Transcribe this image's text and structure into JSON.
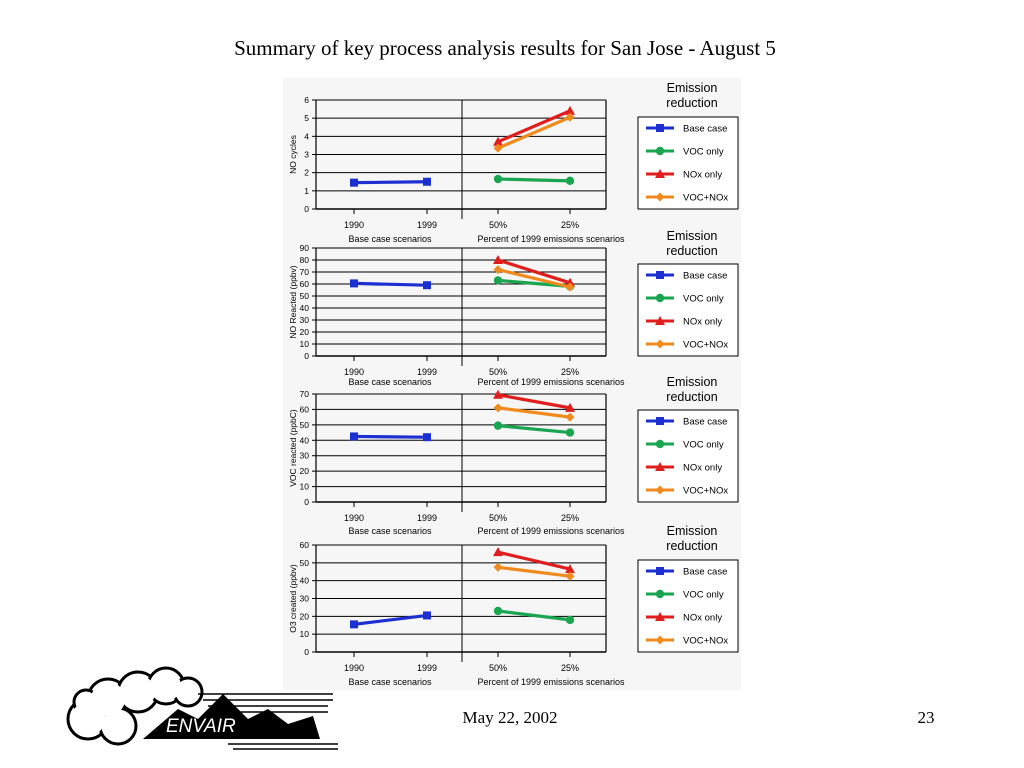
{
  "title": "Summary of key process analysis results for San Jose - August 5",
  "footer": {
    "date": "May 22, 2002",
    "page": "23"
  },
  "logo": {
    "text": "ENVAIR"
  },
  "colors": {
    "base": "#1c2fd1",
    "voc": "#1aa550",
    "nox": "#e01e1e",
    "vocnox": "#f18a1c"
  },
  "chart_data": [
    {
      "type": "line",
      "ylabel": "NO cycles",
      "ylim": [
        0,
        6
      ],
      "yticks": [
        0,
        1,
        2,
        3,
        4,
        5,
        6
      ],
      "categories": [
        "1990",
        "1999",
        "50%",
        "25%"
      ],
      "group_labels": [
        "Base case scenarios",
        "Percent of 1999 emissions scenarios"
      ],
      "legend_title": [
        "Emission",
        "reduction"
      ],
      "series": [
        {
          "name": "Base case",
          "key": "base",
          "values": [
            1.45,
            1.5,
            null,
            null
          ]
        },
        {
          "name": "VOC only",
          "key": "voc",
          "values": [
            null,
            null,
            1.65,
            1.55
          ]
        },
        {
          "name": "NOx only",
          "key": "nox",
          "values": [
            null,
            null,
            3.7,
            5.4
          ]
        },
        {
          "name": "VOC+NOx",
          "key": "vocnox",
          "values": [
            null,
            null,
            3.35,
            5.05
          ]
        }
      ]
    },
    {
      "type": "line",
      "ylabel": "NO Reacted (ppbv)",
      "ylim": [
        0,
        90
      ],
      "yticks": [
        0,
        10,
        20,
        30,
        40,
        50,
        60,
        70,
        80,
        90
      ],
      "categories": [
        "1990",
        "1999",
        "50%",
        "25%"
      ],
      "group_labels": [
        "Base case scenarios",
        "Percent of 1999 emissions scenarios"
      ],
      "legend_title": [
        "Emission",
        "reduction"
      ],
      "series": [
        {
          "name": "Base case",
          "key": "base",
          "values": [
            60.5,
            59,
            null,
            null
          ]
        },
        {
          "name": "VOC only",
          "key": "voc",
          "values": [
            null,
            null,
            63,
            58
          ]
        },
        {
          "name": "NOx only",
          "key": "nox",
          "values": [
            null,
            null,
            80,
            61
          ]
        },
        {
          "name": "VOC+NOx",
          "key": "vocnox",
          "values": [
            null,
            null,
            72,
            57.5
          ]
        }
      ]
    },
    {
      "type": "line",
      "ylabel": "VOC reacted (ppbC)",
      "ylim": [
        0,
        70
      ],
      "yticks": [
        0,
        10,
        20,
        30,
        40,
        50,
        60,
        70
      ],
      "categories": [
        "1990",
        "1999",
        "50%",
        "25%"
      ],
      "group_labels": [
        "Base case scenarios",
        "Percent of 1999 emissions scenarios"
      ],
      "legend_title": [
        "Emission",
        "reduction"
      ],
      "series": [
        {
          "name": "Base case",
          "key": "base",
          "values": [
            42.5,
            42,
            null,
            null
          ]
        },
        {
          "name": "VOC only",
          "key": "voc",
          "values": [
            null,
            null,
            49.5,
            45
          ]
        },
        {
          "name": "NOx only",
          "key": "nox",
          "values": [
            null,
            null,
            69.5,
            61
          ]
        },
        {
          "name": "VOC+NOx",
          "key": "vocnox",
          "values": [
            null,
            null,
            61,
            55
          ]
        }
      ]
    },
    {
      "type": "line",
      "ylabel": "O3 created (ppbv)",
      "ylim": [
        0,
        60
      ],
      "yticks": [
        0,
        10,
        20,
        30,
        40,
        50,
        60
      ],
      "categories": [
        "1990",
        "1999",
        "50%",
        "25%"
      ],
      "group_labels": [
        "Base case scenarios",
        "Percent of 1999 emissions scenarios"
      ],
      "legend_title": [
        "Emission",
        "reduction"
      ],
      "series": [
        {
          "name": "Base case",
          "key": "base",
          "values": [
            15.5,
            20.5,
            null,
            null
          ]
        },
        {
          "name": "VOC only",
          "key": "voc",
          "values": [
            null,
            null,
            23,
            18
          ]
        },
        {
          "name": "NOx only",
          "key": "nox",
          "values": [
            null,
            null,
            56,
            46.5
          ]
        },
        {
          "name": "VOC+NOx",
          "key": "vocnox",
          "values": [
            null,
            null,
            47.5,
            42.5
          ]
        }
      ]
    }
  ]
}
